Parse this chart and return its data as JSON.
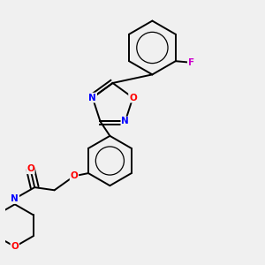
{
  "bg_color": "#f0f0f0",
  "bond_color": "#000000",
  "atom_colors": {
    "O": "#ff0000",
    "N": "#0000ff",
    "F": "#cc00cc",
    "C": "#000000"
  },
  "lw": 1.4,
  "fontsize": 7.5,
  "fig_w": 3.0,
  "fig_h": 3.0,
  "dpi": 100
}
